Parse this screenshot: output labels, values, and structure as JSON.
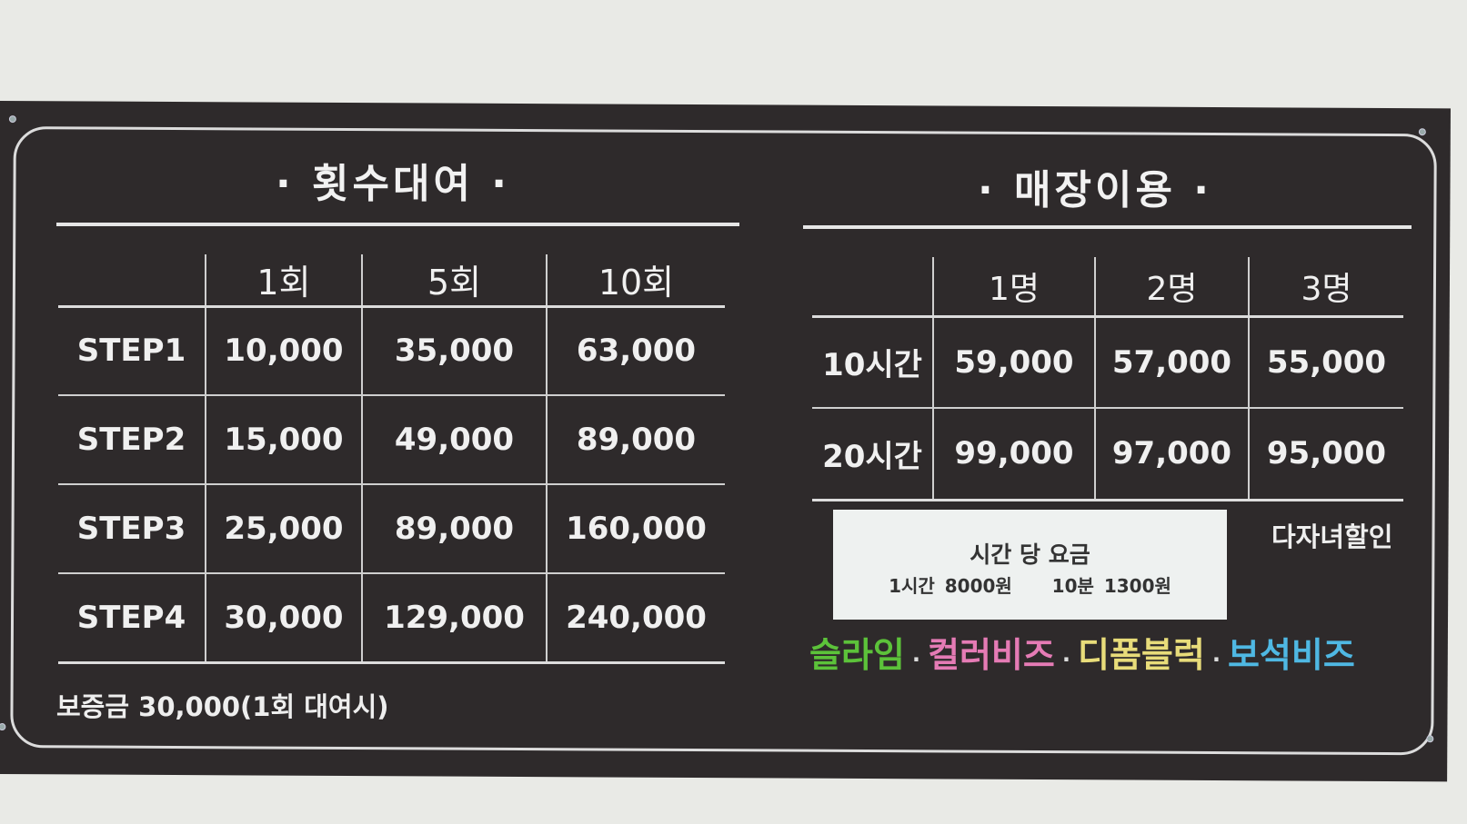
{
  "rental": {
    "title": "· 횟수대여 ·",
    "columns": [
      "",
      "1회",
      "5회",
      "10회"
    ],
    "rows": [
      {
        "label": "STEP1",
        "values": [
          "10,000",
          "35,000",
          "63,000"
        ]
      },
      {
        "label": "STEP2",
        "values": [
          "15,000",
          "49,000",
          "89,000"
        ]
      },
      {
        "label": "STEP3",
        "values": [
          "25,000",
          "89,000",
          "160,000"
        ]
      },
      {
        "label": "STEP4",
        "values": [
          "30,000",
          "129,000",
          "240,000"
        ]
      }
    ],
    "deposit": "보증금 30,000(1회 대여시)"
  },
  "store": {
    "title": "· 매장이용 ·",
    "columns": [
      "",
      "1명",
      "2명",
      "3명"
    ],
    "rows": [
      {
        "label": "10시간",
        "values": [
          "59,000",
          "57,000",
          "55,000"
        ]
      },
      {
        "label": "20시간",
        "values": [
          "99,000",
          "97,000",
          "95,000"
        ]
      }
    ],
    "hourly_note": {
      "title": "시간 당 요금",
      "detail": "1시간 8000원    10분 1300원"
    },
    "discount": "다자녀할인",
    "products": [
      {
        "label": "슬라임",
        "color": "#5cc23a"
      },
      {
        "label": "컬러비즈",
        "color": "#e57bb5"
      },
      {
        "label": "디폼블럭",
        "color": "#e8dc7a"
      },
      {
        "label": "보석비즈",
        "color": "#4fb8e3"
      }
    ],
    "separator": "·"
  }
}
